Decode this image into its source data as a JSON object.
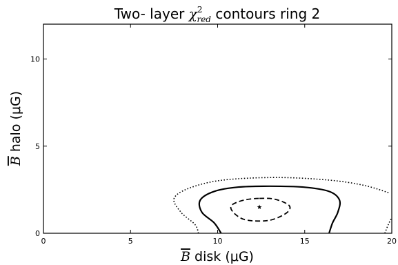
{
  "chart_data": {
    "type": "contour",
    "title": {
      "prefix": "Two- layer ",
      "chi": "χ",
      "sup": "2",
      "sub": "red",
      "suffix": " contours ring 2"
    },
    "xlabel": {
      "bar": "B",
      "text": " disk (μG)"
    },
    "ylabel": {
      "bar": "B",
      "text": " halo (μG)"
    },
    "xlim": [
      0,
      20
    ],
    "ylim": [
      0,
      12
    ],
    "xticks": [
      0,
      5,
      10,
      15,
      20
    ],
    "yticks": [
      0,
      5,
      10
    ],
    "grid": false,
    "best_fit": {
      "x": 12.4,
      "y": 1.5,
      "marker": "star"
    },
    "contours": [
      {
        "style": "dashed",
        "closed": true,
        "points": [
          [
            12.4,
            2.0
          ],
          [
            13.3,
            1.95
          ],
          [
            14.1,
            1.6
          ],
          [
            14.0,
            1.2
          ],
          [
            13.2,
            0.8
          ],
          [
            12.4,
            0.7
          ],
          [
            11.5,
            0.8
          ],
          [
            10.9,
            1.2
          ],
          [
            10.8,
            1.6
          ],
          [
            11.5,
            1.9
          ]
        ]
      },
      {
        "style": "solid",
        "closed": false,
        "points": [
          [
            10.2,
            0.0
          ],
          [
            9.8,
            0.6
          ],
          [
            9.1,
            1.2
          ],
          [
            9.0,
            1.9
          ],
          [
            9.8,
            2.4
          ],
          [
            11.2,
            2.65
          ],
          [
            13.0,
            2.7
          ],
          [
            14.9,
            2.65
          ],
          [
            16.4,
            2.4
          ],
          [
            17.0,
            1.9
          ],
          [
            16.9,
            1.2
          ],
          [
            16.6,
            0.6
          ],
          [
            16.4,
            0.0
          ]
        ]
      },
      {
        "style": "dotted",
        "closed": false,
        "points": [
          [
            8.9,
            0.0
          ],
          [
            8.7,
            0.5
          ],
          [
            7.9,
            1.2
          ],
          [
            7.5,
            2.0
          ],
          [
            8.4,
            2.6
          ],
          [
            10.3,
            3.05
          ],
          [
            13.4,
            3.2
          ],
          [
            16.4,
            3.05
          ],
          [
            18.4,
            2.75
          ],
          [
            19.9,
            2.3
          ]
        ]
      },
      {
        "style": "dotted",
        "closed": false,
        "points": [
          [
            19.6,
            0.0
          ],
          [
            19.8,
            0.5
          ],
          [
            20.0,
            0.9
          ]
        ]
      }
    ]
  }
}
